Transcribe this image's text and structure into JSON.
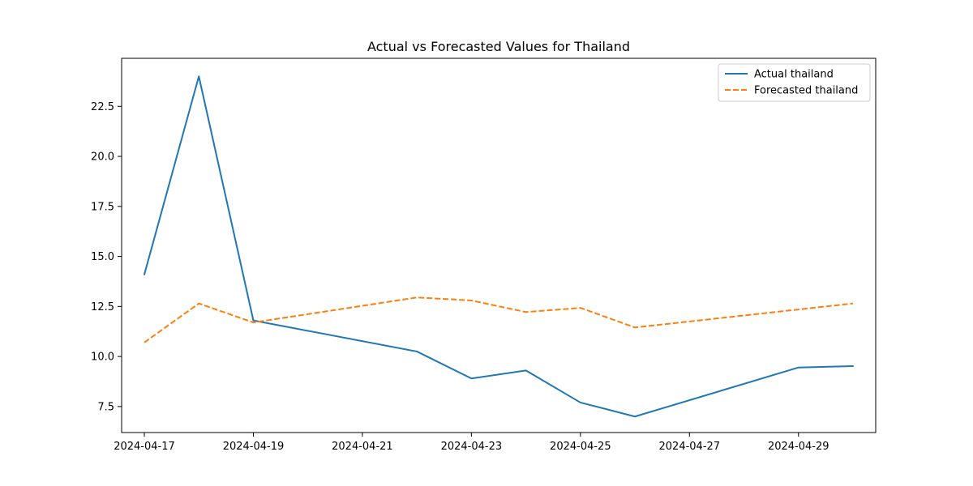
{
  "chart_data": {
    "type": "line",
    "title": "Actual vs Forecasted Values for Thailand",
    "xlabel": "",
    "ylabel": "",
    "x": [
      "2024-04-17",
      "2024-04-18",
      "2024-04-19",
      "2024-04-22",
      "2024-04-23",
      "2024-04-24",
      "2024-04-25",
      "2024-04-26",
      "2024-04-29",
      "2024-04-30"
    ],
    "xlim": [
      "2024-04-16T14:00",
      "2024-04-30T10:00"
    ],
    "ylim": [
      6.2,
      24.9
    ],
    "xticks": [
      "2024-04-17",
      "2024-04-19",
      "2024-04-21",
      "2024-04-23",
      "2024-04-25",
      "2024-04-27",
      "2024-04-29"
    ],
    "yticks": [
      7.5,
      10.0,
      12.5,
      15.0,
      17.5,
      20.0,
      22.5
    ],
    "ytick_labels": [
      "7.5",
      "10.0",
      "12.5",
      "15.0",
      "17.5",
      "20.0",
      "22.5"
    ],
    "grid": false,
    "legend_position": "top-right",
    "series": [
      {
        "name": "Actual thailand",
        "color": "#1f77b4",
        "style": "solid",
        "values": [
          14.1,
          24.0,
          11.8,
          10.25,
          8.9,
          9.3,
          7.7,
          7.0,
          9.45,
          9.52
        ]
      },
      {
        "name": "Forecasted thailand",
        "color": "#ff7f0e",
        "style": "dashed",
        "values": [
          10.7,
          12.65,
          11.7,
          12.95,
          12.8,
          12.22,
          12.43,
          11.45,
          12.35,
          12.65
        ]
      }
    ]
  }
}
